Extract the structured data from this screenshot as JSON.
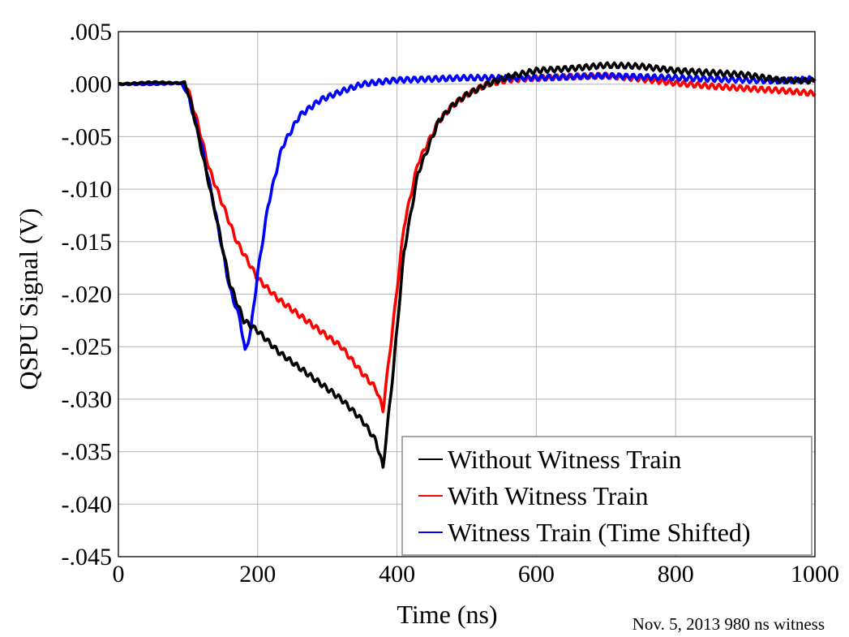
{
  "chart_data": {
    "type": "line",
    "xlabel": "Time (ns)",
    "ylabel": "QSPU Signal (V)",
    "xlim": [
      0,
      1000
    ],
    "ylim": [
      -0.045,
      0.005
    ],
    "grid": true,
    "legend_position": "bottom-right",
    "x_ticks": [
      "0",
      "200",
      "400",
      "600",
      "800",
      "1000"
    ],
    "x_tick_values": [
      0,
      200,
      400,
      600,
      800,
      1000
    ],
    "y_ticks": [
      ".005",
      ".000",
      "-.005",
      "-.010",
      "-.015",
      "-.020",
      "-.025",
      "-.030",
      "-.035",
      "-.040",
      "-.045"
    ],
    "y_tick_values": [
      0.005,
      0.0,
      -0.005,
      -0.01,
      -0.015,
      -0.02,
      -0.025,
      -0.03,
      -0.035,
      -0.04,
      -0.045
    ],
    "annotation": "Nov. 5, 2013  980 ns witness",
    "series": [
      {
        "name": "Without Witness Train",
        "color": "#000000",
        "points": [
          [
            0,
            0.0
          ],
          [
            50,
            0.0002
          ],
          [
            90,
            0.0001
          ],
          [
            95,
            0.0002
          ],
          [
            105,
            -0.002
          ],
          [
            120,
            -0.0065
          ],
          [
            140,
            -0.0125
          ],
          [
            160,
            -0.019
          ],
          [
            180,
            -0.0225
          ],
          [
            200,
            -0.0235
          ],
          [
            230,
            -0.0255
          ],
          [
            260,
            -0.027
          ],
          [
            290,
            -0.0285
          ],
          [
            320,
            -0.03
          ],
          [
            350,
            -0.032
          ],
          [
            370,
            -0.034
          ],
          [
            380,
            -0.0365
          ],
          [
            395,
            -0.027
          ],
          [
            410,
            -0.016
          ],
          [
            430,
            -0.0085
          ],
          [
            460,
            -0.0035
          ],
          [
            480,
            -0.002
          ],
          [
            500,
            -0.001
          ],
          [
            530,
            0.0
          ],
          [
            560,
            0.0007
          ],
          [
            600,
            0.0013
          ],
          [
            650,
            0.0015
          ],
          [
            700,
            0.0018
          ],
          [
            750,
            0.0017
          ],
          [
            800,
            0.0013
          ],
          [
            850,
            0.0011
          ],
          [
            900,
            0.0009
          ],
          [
            950,
            0.0004
          ],
          [
            1000,
            0.0003
          ]
        ]
      },
      {
        "name": "With Witness Train",
        "color": "#ff0000",
        "points": [
          [
            0,
            0.0
          ],
          [
            50,
            0.0
          ],
          [
            90,
            0.0001
          ],
          [
            100,
            -0.0005
          ],
          [
            115,
            -0.004
          ],
          [
            130,
            -0.008
          ],
          [
            150,
            -0.0115
          ],
          [
            170,
            -0.015
          ],
          [
            200,
            -0.0185
          ],
          [
            230,
            -0.0205
          ],
          [
            260,
            -0.022
          ],
          [
            290,
            -0.0235
          ],
          [
            320,
            -0.025
          ],
          [
            350,
            -0.0275
          ],
          [
            370,
            -0.029
          ],
          [
            380,
            -0.031
          ],
          [
            395,
            -0.0225
          ],
          [
            410,
            -0.0135
          ],
          [
            430,
            -0.0075
          ],
          [
            460,
            -0.0035
          ],
          [
            480,
            -0.002
          ],
          [
            500,
            -0.001
          ],
          [
            530,
            0.0
          ],
          [
            560,
            0.0004
          ],
          [
            600,
            0.0006
          ],
          [
            650,
            0.0007
          ],
          [
            700,
            0.0008
          ],
          [
            750,
            0.0005
          ],
          [
            800,
            0.0001
          ],
          [
            850,
            -0.0002
          ],
          [
            900,
            -0.0004
          ],
          [
            950,
            -0.0006
          ],
          [
            1000,
            -0.0009
          ]
        ]
      },
      {
        "name": "Witness Train (Time Shifted)",
        "color": "#0000ff",
        "points": [
          [
            0,
            0.0
          ],
          [
            50,
            0.0
          ],
          [
            90,
            0.0001
          ],
          [
            100,
            -0.001
          ],
          [
            120,
            -0.006
          ],
          [
            140,
            -0.0125
          ],
          [
            160,
            -0.0195
          ],
          [
            175,
            -0.0225
          ],
          [
            182,
            -0.0255
          ],
          [
            190,
            -0.0235
          ],
          [
            200,
            -0.018
          ],
          [
            215,
            -0.0115
          ],
          [
            235,
            -0.006
          ],
          [
            260,
            -0.003
          ],
          [
            290,
            -0.0015
          ],
          [
            320,
            -0.0007
          ],
          [
            350,
            0.0
          ],
          [
            400,
            0.0004
          ],
          [
            450,
            0.0005
          ],
          [
            500,
            0.0006
          ],
          [
            550,
            0.0006
          ],
          [
            600,
            0.0006
          ],
          [
            650,
            0.0007
          ],
          [
            700,
            0.0008
          ],
          [
            750,
            0.0007
          ],
          [
            800,
            0.0006
          ],
          [
            850,
            0.0005
          ],
          [
            900,
            0.0004
          ],
          [
            950,
            0.0003
          ],
          [
            1000,
            0.0005
          ]
        ]
      }
    ]
  }
}
